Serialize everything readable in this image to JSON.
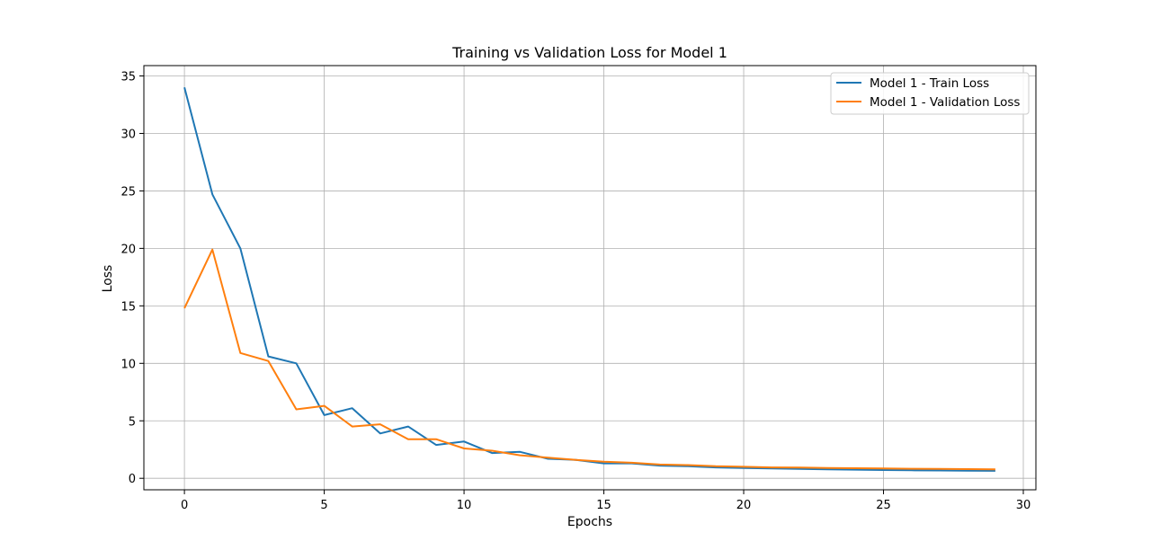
{
  "chart_data": {
    "type": "line",
    "title": "Training vs Validation Loss for Model 1",
    "xlabel": "Epochs",
    "ylabel": "Loss",
    "xlim": [
      -1.45,
      30.45
    ],
    "ylim": [
      -1.0,
      35.9
    ],
    "xticks": [
      0,
      5,
      10,
      15,
      20,
      25,
      30
    ],
    "yticks": [
      0,
      5,
      10,
      15,
      20,
      25,
      30,
      35
    ],
    "grid": true,
    "legend_position": "top-right",
    "x": [
      0,
      1,
      2,
      3,
      4,
      5,
      6,
      7,
      8,
      9,
      10,
      11,
      12,
      13,
      14,
      15,
      16,
      17,
      18,
      19,
      20,
      21,
      22,
      23,
      24,
      25,
      26,
      27,
      28,
      29
    ],
    "series": [
      {
        "name": "Model 1 - Train Loss",
        "color": "#1f77b4",
        "values": [
          34.0,
          24.7,
          20.0,
          10.6,
          10.0,
          5.5,
          6.1,
          3.9,
          4.5,
          2.9,
          3.2,
          2.2,
          2.3,
          1.7,
          1.6,
          1.3,
          1.3,
          1.1,
          1.05,
          0.95,
          0.9,
          0.85,
          0.82,
          0.78,
          0.75,
          0.72,
          0.7,
          0.68,
          0.66,
          0.65
        ]
      },
      {
        "name": "Model 1 - Validation Loss",
        "color": "#ff7f0e",
        "values": [
          14.8,
          19.9,
          10.9,
          10.2,
          6.0,
          6.3,
          4.5,
          4.7,
          3.4,
          3.4,
          2.6,
          2.4,
          2.0,
          1.8,
          1.6,
          1.45,
          1.35,
          1.2,
          1.15,
          1.05,
          1.0,
          0.95,
          0.93,
          0.9,
          0.88,
          0.85,
          0.83,
          0.81,
          0.8,
          0.78
        ]
      }
    ]
  }
}
